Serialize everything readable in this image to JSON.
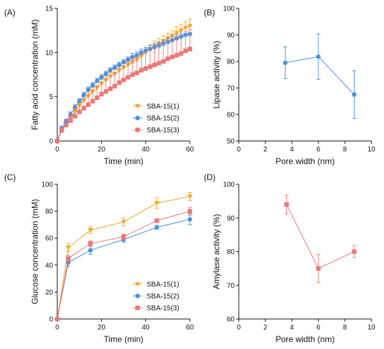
{
  "chart_data": [
    {
      "panel": "(A)",
      "type": "line",
      "xlabel": "Time (min)",
      "ylabel": "Fatty acid concentration (mM)",
      "xlim": [
        0,
        60
      ],
      "ylim": [
        0,
        15
      ],
      "xticks": [
        0,
        20,
        40,
        60
      ],
      "yticks": [
        0,
        5,
        10,
        15
      ],
      "legend": "bottom-right",
      "x": [
        0,
        2,
        4,
        6,
        8,
        10,
        12,
        14,
        16,
        18,
        20,
        22,
        24,
        26,
        28,
        30,
        32,
        34,
        36,
        38,
        40,
        42,
        44,
        46,
        48,
        50,
        52,
        54,
        56,
        58,
        60
      ],
      "series": [
        {
          "name": "SBA-15(1)",
          "color": "#f5a623",
          "marker": "triangle-down",
          "values": [
            0,
            1.2,
            1.9,
            2.6,
            3.3,
            4.0,
            4.6,
            5.1,
            5.6,
            6.0,
            6.5,
            6.9,
            7.3,
            7.6,
            8.0,
            8.3,
            8.6,
            8.9,
            9.2,
            9.6,
            10.0,
            10.4,
            10.7,
            11.0,
            11.3,
            11.6,
            11.9,
            12.2,
            12.5,
            12.8,
            13.0
          ],
          "errors": [
            0,
            0.2,
            0.3,
            0.3,
            0.3,
            0.4,
            0.4,
            0.4,
            0.4,
            0.4,
            0.4,
            0.4,
            0.4,
            0.5,
            0.5,
            0.5,
            0.5,
            0.5,
            0.5,
            0.5,
            0.5,
            0.5,
            0.6,
            0.6,
            0.6,
            0.6,
            0.6,
            0.7,
            0.7,
            0.7,
            0.8
          ]
        },
        {
          "name": "SBA-15(2)",
          "color": "#4a90e2",
          "marker": "circle",
          "values": [
            0,
            1.4,
            2.2,
            3.0,
            3.8,
            4.5,
            5.2,
            5.8,
            6.3,
            6.8,
            7.2,
            7.6,
            8.0,
            8.3,
            8.6,
            8.9,
            9.2,
            9.5,
            9.7,
            10.0,
            10.2,
            10.4,
            10.6,
            10.8,
            11.0,
            11.2,
            11.4,
            11.6,
            11.8,
            12.0,
            12.1
          ],
          "errors": [
            0,
            0.2,
            0.2,
            0.3,
            0.3,
            0.3,
            0.3,
            0.3,
            0.3,
            0.3,
            0.3,
            0.3,
            0.3,
            0.3,
            0.3,
            0.3,
            0.3,
            0.4,
            0.4,
            0.4,
            0.4,
            0.4,
            0.4,
            0.4,
            0.4,
            0.4,
            0.4,
            0.4,
            0.4,
            0.4,
            0.5
          ]
        },
        {
          "name": "SBA-15(3)",
          "color": "#ee7777",
          "marker": "square",
          "values": [
            0,
            1.2,
            1.8,
            2.3,
            2.8,
            3.3,
            3.7,
            4.1,
            4.5,
            4.9,
            5.3,
            5.6,
            5.9,
            6.2,
            6.6,
            6.9,
            7.2,
            7.5,
            7.7,
            8.0,
            8.2,
            8.4,
            8.6,
            8.8,
            9.0,
            9.3,
            9.5,
            9.7,
            9.9,
            10.2,
            10.4
          ],
          "errors": [
            0,
            0.5,
            0.7,
            0.8,
            0.9,
            1.0,
            1.0,
            1.1,
            1.2,
            1.3,
            1.3,
            1.4,
            1.5,
            1.5,
            1.6,
            1.6,
            1.7,
            1.7,
            1.8,
            1.8,
            1.9,
            1.9,
            1.9,
            2.0,
            2.0,
            2.1,
            2.1,
            2.1,
            2.1,
            2.2,
            2.2
          ]
        }
      ]
    },
    {
      "panel": "(B)",
      "type": "line",
      "xlabel": "Pore width (nm)",
      "ylabel": "Lipase activity (%)",
      "xlim": [
        0,
        10
      ],
      "ylim": [
        50,
        100
      ],
      "xticks": [
        0,
        2,
        4,
        6,
        8,
        10
      ],
      "yticks": [
        50,
        60,
        70,
        80,
        90,
        100
      ],
      "series": [
        {
          "name": "",
          "color": "#4a90e2",
          "marker": "circle",
          "x": [
            3.5,
            6.0,
            8.7
          ],
          "values": [
            79.5,
            81.8,
            67.5
          ],
          "errors": [
            6.0,
            8.5,
            9.0
          ]
        }
      ]
    },
    {
      "panel": "(C)",
      "type": "line",
      "xlabel": "Time (min)",
      "ylabel": "Glucose concentration (mM)",
      "xlim": [
        0,
        60
      ],
      "ylim": [
        0,
        100
      ],
      "xticks": [
        0,
        20,
        40,
        60
      ],
      "yticks": [
        0,
        20,
        40,
        60,
        80,
        100
      ],
      "legend": "bottom-right",
      "x": [
        0,
        5,
        15,
        30,
        45,
        60
      ],
      "series": [
        {
          "name": "SBA-15(1)",
          "color": "#f5a623",
          "marker": "triangle-down",
          "values": [
            0,
            53,
            66,
            72,
            86,
            91
          ],
          "errors": [
            0,
            3,
            2.5,
            3,
            4,
            3
          ]
        },
        {
          "name": "SBA-15(2)",
          "color": "#4a90e2",
          "marker": "circle",
          "values": [
            0,
            42,
            51,
            59,
            68,
            74
          ],
          "errors": [
            0,
            3,
            3,
            2,
            1.5,
            4
          ]
        },
        {
          "name": "SBA-15(3)",
          "color": "#ee7777",
          "marker": "square",
          "values": [
            0,
            45,
            56,
            61,
            73,
            80
          ],
          "errors": [
            0,
            2.5,
            2,
            2,
            1.5,
            3
          ]
        }
      ]
    },
    {
      "panel": "(D)",
      "type": "line",
      "xlabel": "Pore width (nm)",
      "ylabel": "Amylase activity (%)",
      "xlim": [
        0,
        10
      ],
      "ylim": [
        60,
        100
      ],
      "xticks": [
        0,
        2,
        4,
        6,
        8,
        10
      ],
      "yticks": [
        60,
        70,
        80,
        90,
        100
      ],
      "series": [
        {
          "name": "",
          "color": "#ee7777",
          "marker": "square",
          "x": [
            3.6,
            6.0,
            8.7
          ],
          "values": [
            94,
            75,
            80
          ],
          "errors": [
            2.8,
            4.2,
            1.8
          ]
        }
      ]
    }
  ]
}
